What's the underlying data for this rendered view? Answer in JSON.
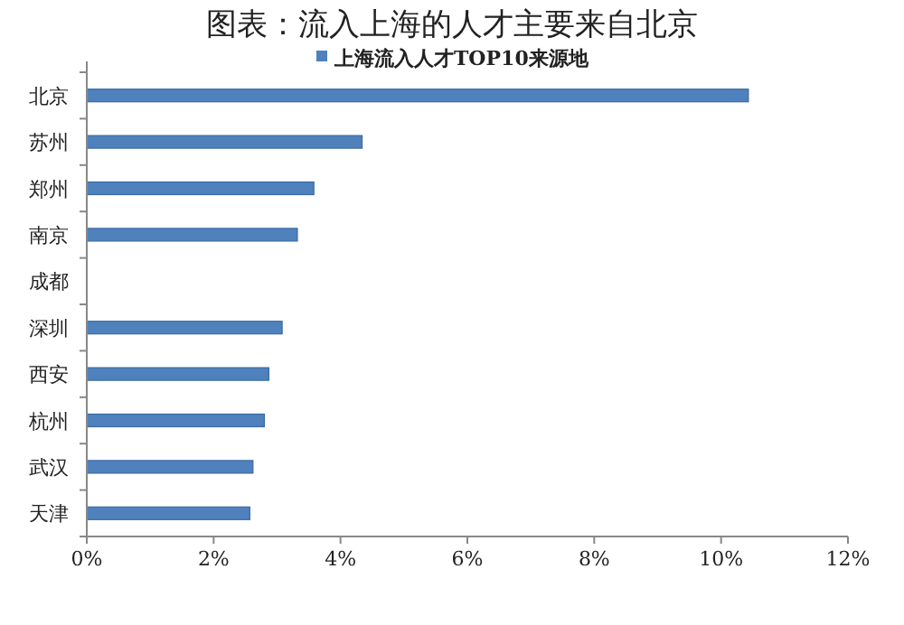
{
  "chart_data": {
    "type": "bar",
    "orientation": "horizontal",
    "title": "图表：流入上海的人才主要来自北京",
    "categories": [
      "北京",
      "苏州",
      "郑州",
      "南京",
      "成都",
      "深圳",
      "西安",
      "杭州",
      "武汉",
      "天津"
    ],
    "series": [
      {
        "name": "上海流入人才TOP10来源地",
        "color": "#4f81bd",
        "values": [
          10.43,
          4.34,
          3.58,
          3.32,
          null,
          3.08,
          2.87,
          2.8,
          2.62,
          2.57
        ]
      }
    ],
    "xlim": [
      0,
      12
    ],
    "xticks": [
      {
        "value": 0,
        "label": "0%"
      },
      {
        "value": 2,
        "label": "2%"
      },
      {
        "value": 4,
        "label": "4%"
      },
      {
        "value": 6,
        "label": "6%"
      },
      {
        "value": 8,
        "label": "8%"
      },
      {
        "value": 10,
        "label": "10%"
      },
      {
        "value": 12,
        "label": "12%"
      }
    ],
    "legend": "top",
    "grid": false
  }
}
